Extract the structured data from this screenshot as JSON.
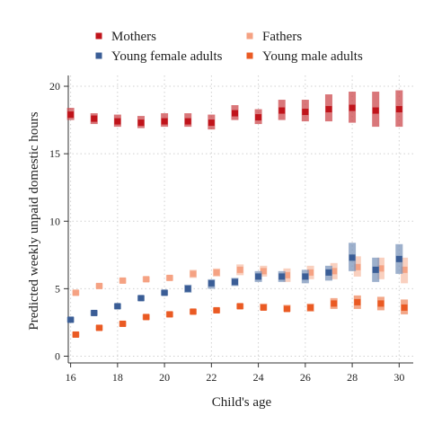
{
  "chart_data": {
    "type": "scatter",
    "xlabel": "Child's age",
    "ylabel": "Predicted weekly unpaid domestic hours",
    "xlim": [
      15.9,
      30.6
    ],
    "ylim": [
      -0.5,
      20.8
    ],
    "xticks": [
      16,
      18,
      20,
      22,
      24,
      26,
      28,
      30
    ],
    "yticks": [
      0,
      5,
      10,
      15,
      20
    ],
    "grid": true,
    "legend_position": "top",
    "series": [
      {
        "name": "Mothers",
        "color": "#c0141b",
        "ci_color": "#cc4a4e",
        "offset": 0.0,
        "points": [
          {
            "x": 16,
            "y": 17.9,
            "lo": 17.5,
            "hi": 18.4
          },
          {
            "x": 17,
            "y": 17.6,
            "lo": 17.2,
            "hi": 18.0
          },
          {
            "x": 18,
            "y": 17.4,
            "lo": 17.0,
            "hi": 17.9
          },
          {
            "x": 19,
            "y": 17.3,
            "lo": 16.9,
            "hi": 17.8
          },
          {
            "x": 20,
            "y": 17.4,
            "lo": 17.0,
            "hi": 18.0
          },
          {
            "x": 21,
            "y": 17.4,
            "lo": 17.0,
            "hi": 18.0
          },
          {
            "x": 22,
            "y": 17.3,
            "lo": 16.8,
            "hi": 17.9
          },
          {
            "x": 23,
            "y": 18.0,
            "lo": 17.5,
            "hi": 18.6
          },
          {
            "x": 24,
            "y": 17.7,
            "lo": 17.2,
            "hi": 18.3
          },
          {
            "x": 25,
            "y": 18.2,
            "lo": 17.5,
            "hi": 19.0
          },
          {
            "x": 26,
            "y": 18.1,
            "lo": 17.4,
            "hi": 19.0
          },
          {
            "x": 27,
            "y": 18.3,
            "lo": 17.4,
            "hi": 19.4
          },
          {
            "x": 28,
            "y": 18.4,
            "lo": 17.3,
            "hi": 19.6
          },
          {
            "x": 29,
            "y": 18.2,
            "lo": 17.0,
            "hi": 19.6
          },
          {
            "x": 30,
            "y": 18.3,
            "lo": 17.0,
            "hi": 19.7
          }
        ]
      },
      {
        "name": "Fathers",
        "color": "#f5a283",
        "ci_color": "#f7c0aa",
        "offset": 0.22,
        "points": [
          {
            "x": 16,
            "y": 4.7,
            "lo": 4.5,
            "hi": 4.9
          },
          {
            "x": 17,
            "y": 5.2,
            "lo": 5.0,
            "hi": 5.4
          },
          {
            "x": 18,
            "y": 5.6,
            "lo": 5.4,
            "hi": 5.8
          },
          {
            "x": 19,
            "y": 5.7,
            "lo": 5.5,
            "hi": 5.9
          },
          {
            "x": 20,
            "y": 5.8,
            "lo": 5.6,
            "hi": 6.0
          },
          {
            "x": 21,
            "y": 6.1,
            "lo": 5.8,
            "hi": 6.4
          },
          {
            "x": 22,
            "y": 6.2,
            "lo": 5.9,
            "hi": 6.5
          },
          {
            "x": 23,
            "y": 6.4,
            "lo": 6.0,
            "hi": 6.8
          },
          {
            "x": 24,
            "y": 6.3,
            "lo": 5.9,
            "hi": 6.7
          },
          {
            "x": 25,
            "y": 6.0,
            "lo": 5.5,
            "hi": 6.5
          },
          {
            "x": 26,
            "y": 6.2,
            "lo": 5.7,
            "hi": 6.7
          },
          {
            "x": 27,
            "y": 6.3,
            "lo": 5.7,
            "hi": 6.9
          },
          {
            "x": 28,
            "y": 6.6,
            "lo": 5.9,
            "hi": 7.4
          },
          {
            "x": 29,
            "y": 6.5,
            "lo": 5.7,
            "hi": 7.3
          },
          {
            "x": 30,
            "y": 6.4,
            "lo": 5.4,
            "hi": 7.3
          }
        ]
      },
      {
        "name": "Young female adults",
        "color": "#3a5d96",
        "ci_color": "#7c95bb",
        "offset": 0.0,
        "points": [
          {
            "x": 16,
            "y": 2.7,
            "lo": 2.5,
            "hi": 2.9
          },
          {
            "x": 17,
            "y": 3.2,
            "lo": 3.0,
            "hi": 3.4
          },
          {
            "x": 18,
            "y": 3.7,
            "lo": 3.5,
            "hi": 3.9
          },
          {
            "x": 19,
            "y": 4.3,
            "lo": 4.1,
            "hi": 4.5
          },
          {
            "x": 20,
            "y": 4.7,
            "lo": 4.5,
            "hi": 4.9
          },
          {
            "x": 21,
            "y": 5.0,
            "lo": 4.7,
            "hi": 5.3
          },
          {
            "x": 22,
            "y": 5.4,
            "lo": 5.0,
            "hi": 5.7
          },
          {
            "x": 23,
            "y": 5.5,
            "lo": 5.2,
            "hi": 5.8
          },
          {
            "x": 24,
            "y": 5.9,
            "lo": 5.5,
            "hi": 6.3
          },
          {
            "x": 25,
            "y": 5.9,
            "lo": 5.5,
            "hi": 6.3
          },
          {
            "x": 26,
            "y": 5.9,
            "lo": 5.4,
            "hi": 6.4
          },
          {
            "x": 27,
            "y": 6.2,
            "lo": 5.6,
            "hi": 6.7
          },
          {
            "x": 28,
            "y": 7.3,
            "lo": 6.3,
            "hi": 8.4
          },
          {
            "x": 29,
            "y": 6.4,
            "lo": 5.5,
            "hi": 7.3
          },
          {
            "x": 30,
            "y": 7.2,
            "lo": 6.1,
            "hi": 8.3
          }
        ]
      },
      {
        "name": "Young male adults",
        "color": "#ea5a23",
        "ci_color": "#ef8a60",
        "offset": 0.22,
        "points": [
          {
            "x": 16,
            "y": 1.6,
            "lo": 1.4,
            "hi": 1.8
          },
          {
            "x": 17,
            "y": 2.1,
            "lo": 1.9,
            "hi": 2.3
          },
          {
            "x": 18,
            "y": 2.4,
            "lo": 2.2,
            "hi": 2.6
          },
          {
            "x": 19,
            "y": 2.9,
            "lo": 2.7,
            "hi": 3.1
          },
          {
            "x": 20,
            "y": 3.1,
            "lo": 2.9,
            "hi": 3.3
          },
          {
            "x": 21,
            "y": 3.3,
            "lo": 3.1,
            "hi": 3.5
          },
          {
            "x": 22,
            "y": 3.4,
            "lo": 3.2,
            "hi": 3.6
          },
          {
            "x": 23,
            "y": 3.7,
            "lo": 3.5,
            "hi": 3.9
          },
          {
            "x": 24,
            "y": 3.6,
            "lo": 3.4,
            "hi": 3.9
          },
          {
            "x": 25,
            "y": 3.5,
            "lo": 3.3,
            "hi": 3.8
          },
          {
            "x": 26,
            "y": 3.6,
            "lo": 3.3,
            "hi": 3.9
          },
          {
            "x": 27,
            "y": 3.9,
            "lo": 3.5,
            "hi": 4.3
          },
          {
            "x": 28,
            "y": 4.0,
            "lo": 3.5,
            "hi": 4.5
          },
          {
            "x": 29,
            "y": 3.9,
            "lo": 3.4,
            "hi": 4.4
          },
          {
            "x": 30,
            "y": 3.6,
            "lo": 3.1,
            "hi": 4.2
          }
        ]
      }
    ]
  }
}
